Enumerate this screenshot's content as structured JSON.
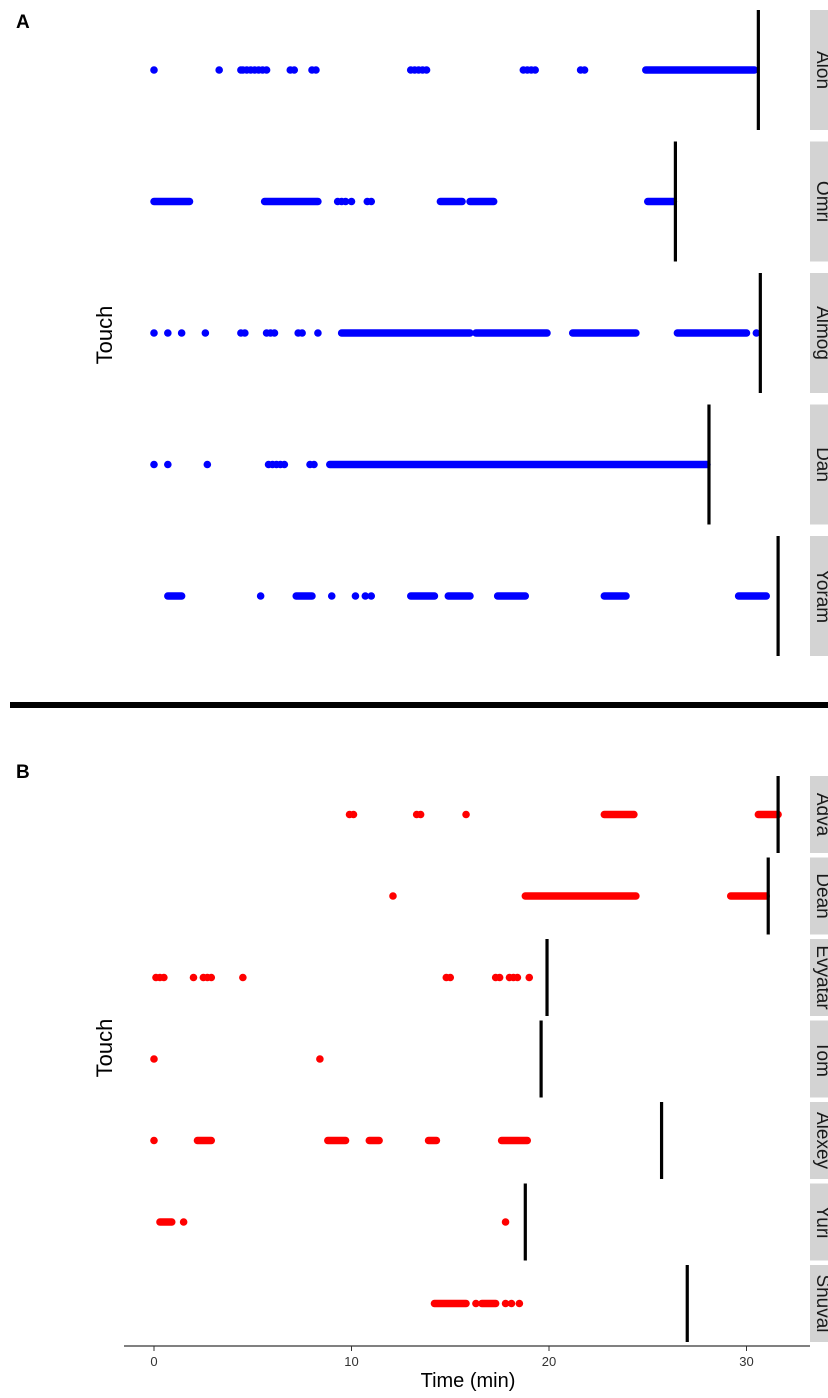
{
  "chart_data": [
    {
      "type": "scatter",
      "panel": "A",
      "ylabel": "Touch",
      "xlabel": "",
      "xlim": [
        -1.5,
        33.5
      ],
      "color": "#0000ff",
      "facets": [
        {
          "name": "Alon",
          "end": 30.6,
          "points": [
            0.0,
            3.3,
            4.4,
            4.5,
            4.7,
            4.9,
            5.1,
            5.3,
            5.5,
            5.7,
            6.9,
            7.1,
            8.0,
            8.2,
            13.0,
            13.2,
            13.4,
            13.6,
            13.8,
            18.7,
            18.9,
            19.1,
            19.3,
            21.6,
            21.8,
            [
              24.9,
              30.4
            ]
          ]
        },
        {
          "name": "Omri",
          "end": 26.4,
          "points": [
            [
              0.0,
              1.8
            ],
            [
              5.6,
              8.3
            ],
            9.3,
            9.5,
            9.7,
            10.0,
            10.8,
            11.0,
            [
              14.5,
              15.6
            ],
            [
              16.0,
              17.2
            ],
            [
              25.0,
              26.3
            ]
          ]
        },
        {
          "name": "Almog",
          "end": 30.7,
          "points": [
            0.0,
            0.7,
            1.4,
            2.6,
            4.4,
            4.6,
            5.7,
            5.9,
            6.1,
            7.3,
            7.5,
            8.3,
            [
              9.5,
              16.0
            ],
            [
              16.3,
              19.9
            ],
            [
              21.2,
              24.4
            ],
            [
              26.5,
              30.0
            ],
            30.5
          ]
        },
        {
          "name": "Dan",
          "end": 28.1,
          "points": [
            0.0,
            0.7,
            2.7,
            5.8,
            6.0,
            6.2,
            6.4,
            6.6,
            7.9,
            8.1,
            [
              8.9,
              28.0
            ]
          ]
        },
        {
          "name": "Yoram",
          "end": 31.6,
          "points": [
            [
              0.7,
              1.4
            ],
            5.4,
            [
              7.2,
              8.0
            ],
            9.0,
            10.2,
            10.7,
            11.0,
            [
              13.0,
              14.2
            ],
            [
              14.9,
              16.0
            ],
            [
              17.4,
              18.8
            ],
            [
              22.8,
              23.9
            ],
            [
              29.6,
              31.0
            ]
          ]
        }
      ]
    },
    {
      "type": "scatter",
      "panel": "B",
      "ylabel": "Touch",
      "xlabel": "Time (min)",
      "xlim": [
        -1.5,
        33.5
      ],
      "xticks": [
        0,
        10,
        20,
        30
      ],
      "tick_labels": [
        "0",
        "10",
        "20",
        "30"
      ],
      "color": "#ff0000",
      "facets": [
        {
          "name": "Adva",
          "end": 31.6,
          "points": [
            9.9,
            10.1,
            13.3,
            13.5,
            15.8,
            [
              22.8,
              24.3
            ],
            [
              30.6,
              31.6
            ]
          ]
        },
        {
          "name": "Dean",
          "end": 31.1,
          "points": [
            12.1,
            [
              18.8,
              24.4
            ],
            [
              29.2,
              31.0
            ]
          ]
        },
        {
          "name": "Evyatar",
          "end": 19.9,
          "points": [
            0.1,
            0.3,
            0.5,
            2.0,
            2.5,
            2.7,
            2.9,
            4.5,
            14.8,
            15.0,
            17.3,
            17.5,
            18.0,
            18.2,
            18.4,
            19.0
          ]
        },
        {
          "name": "Tom",
          "end": 19.6,
          "points": [
            0.0,
            8.4
          ]
        },
        {
          "name": "Alexey",
          "end": 25.7,
          "points": [
            0.0,
            [
              2.2,
              2.9
            ],
            [
              8.8,
              9.7
            ],
            [
              10.9,
              11.4
            ],
            [
              13.9,
              14.3
            ],
            [
              17.6,
              18.9
            ]
          ]
        },
        {
          "name": "Yuri",
          "end": 18.8,
          "points": [
            [
              0.3,
              0.9
            ],
            1.5,
            17.8
          ]
        },
        {
          "name": "Shuval",
          "end": 27.0,
          "points": [
            [
              14.2,
              15.8
            ],
            16.3,
            [
              16.6,
              17.3
            ],
            17.8,
            18.1,
            18.5
          ]
        }
      ]
    }
  ]
}
